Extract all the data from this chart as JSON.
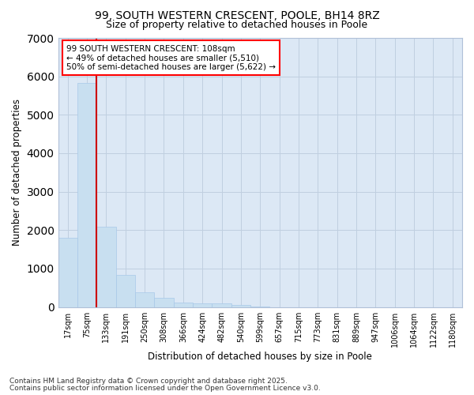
{
  "title": "99, SOUTH WESTERN CRESCENT, POOLE, BH14 8RZ",
  "subtitle": "Size of property relative to detached houses in Poole",
  "xlabel": "Distribution of detached houses by size in Poole",
  "ylabel": "Number of detached properties",
  "bar_color": "#c8dff0",
  "bar_edgecolor": "#a8c8e8",
  "grid_color": "#c0cfe0",
  "background_color": "#dce8f5",
  "vline_color": "#cc0000",
  "vline_x_index": 2,
  "categories": [
    "17sqm",
    "75sqm",
    "133sqm",
    "191sqm",
    "250sqm",
    "308sqm",
    "366sqm",
    "424sqm",
    "482sqm",
    "540sqm",
    "599sqm",
    "657sqm",
    "715sqm",
    "773sqm",
    "831sqm",
    "889sqm",
    "947sqm",
    "1006sqm",
    "1064sqm",
    "1122sqm",
    "1180sqm"
  ],
  "values": [
    1790,
    5820,
    2080,
    830,
    375,
    235,
    120,
    90,
    95,
    45,
    8,
    0,
    0,
    0,
    0,
    0,
    0,
    0,
    0,
    0,
    0
  ],
  "ylim": [
    0,
    7000
  ],
  "yticks": [
    0,
    1000,
    2000,
    3000,
    4000,
    5000,
    6000,
    7000
  ],
  "annotation_title": "99 SOUTH WESTERN CRESCENT: 108sqm",
  "annotation_line1": "← 49% of detached houses are smaller (5,510)",
  "annotation_line2": "50% of semi-detached houses are larger (5,622) →",
  "footnote1": "Contains HM Land Registry data © Crown copyright and database right 2025.",
  "footnote2": "Contains public sector information licensed under the Open Government Licence v3.0.",
  "title_fontsize": 10,
  "subtitle_fontsize": 9,
  "axis_label_fontsize": 8.5,
  "tick_fontsize": 7,
  "annotation_fontsize": 7.5,
  "footnote_fontsize": 6.5
}
